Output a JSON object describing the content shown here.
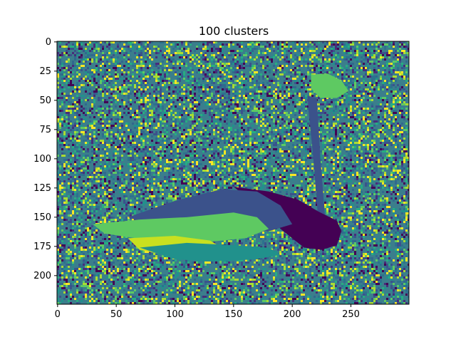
{
  "chart_data": {
    "type": "heatmap",
    "title": "100 clusters",
    "xlabel": "",
    "ylabel": "",
    "image_shape": [
      225,
      300
    ],
    "xlim": [
      -0.5,
      299.5
    ],
    "ylim": [
      224.5,
      -0.5
    ],
    "x_ticks": [
      0,
      50,
      100,
      150,
      200,
      250
    ],
    "y_ticks": [
      0,
      25,
      50,
      75,
      100,
      125,
      150,
      175,
      200
    ],
    "colormap": "viridis",
    "num_clusters": 100,
    "grid": false,
    "legend": "none",
    "subject": "Image of a swan segmented into 100 clusters, rendered with a viridis colormap; noisy speckled background, dark-purple neck and head in the center-right, teal/yellow-green wing region on the left.",
    "regions": [
      {
        "name": "neck",
        "color": "#3b528b",
        "polygon": [
          [
            213,
            46
          ],
          [
            221,
            48
          ],
          [
            224,
            100
          ],
          [
            228,
            150
          ],
          [
            222,
            150
          ],
          [
            218,
            100
          ],
          [
            214,
            60
          ]
        ]
      },
      {
        "name": "head",
        "color": "#5ec962",
        "polygon": [
          [
            216,
            28
          ],
          [
            230,
            27
          ],
          [
            242,
            33
          ],
          [
            248,
            42
          ],
          [
            238,
            48
          ],
          [
            224,
            48
          ],
          [
            216,
            40
          ]
        ]
      },
      {
        "name": "body-dark",
        "color": "#440154",
        "polygon": [
          [
            150,
            124
          ],
          [
            180,
            128
          ],
          [
            205,
            135
          ],
          [
            222,
            145
          ],
          [
            238,
            153
          ],
          [
            242,
            162
          ],
          [
            238,
            174
          ],
          [
            225,
            178
          ],
          [
            210,
            176
          ],
          [
            200,
            168
          ],
          [
            190,
            160
          ],
          [
            180,
            148
          ],
          [
            165,
            136
          ]
        ]
      },
      {
        "name": "wing-upper",
        "color": "#3b528b",
        "polygon": [
          [
            60,
            150
          ],
          [
            100,
            136
          ],
          [
            140,
            126
          ],
          [
            170,
            128
          ],
          [
            190,
            140
          ],
          [
            200,
            156
          ],
          [
            180,
            162
          ],
          [
            150,
            164
          ],
          [
            120,
            164
          ],
          [
            90,
            160
          ]
        ]
      },
      {
        "name": "wing-mid",
        "color": "#5ec962",
        "polygon": [
          [
            30,
            156
          ],
          [
            70,
            152
          ],
          [
            110,
            150
          ],
          [
            150,
            146
          ],
          [
            170,
            150
          ],
          [
            180,
            160
          ],
          [
            160,
            168
          ],
          [
            120,
            172
          ],
          [
            80,
            170
          ],
          [
            40,
            164
          ]
        ]
      },
      {
        "name": "wing-yellow",
        "color": "#c8e020",
        "polygon": [
          [
            60,
            168
          ],
          [
            100,
            166
          ],
          [
            130,
            170
          ],
          [
            140,
            176
          ],
          [
            120,
            182
          ],
          [
            90,
            182
          ],
          [
            70,
            178
          ]
        ]
      },
      {
        "name": "wing-lower",
        "color": "#21918c",
        "polygon": [
          [
            70,
            176
          ],
          [
            110,
            172
          ],
          [
            150,
            174
          ],
          [
            180,
            176
          ],
          [
            190,
            182
          ],
          [
            170,
            186
          ],
          [
            130,
            188
          ],
          [
            100,
            186
          ]
        ]
      }
    ]
  }
}
